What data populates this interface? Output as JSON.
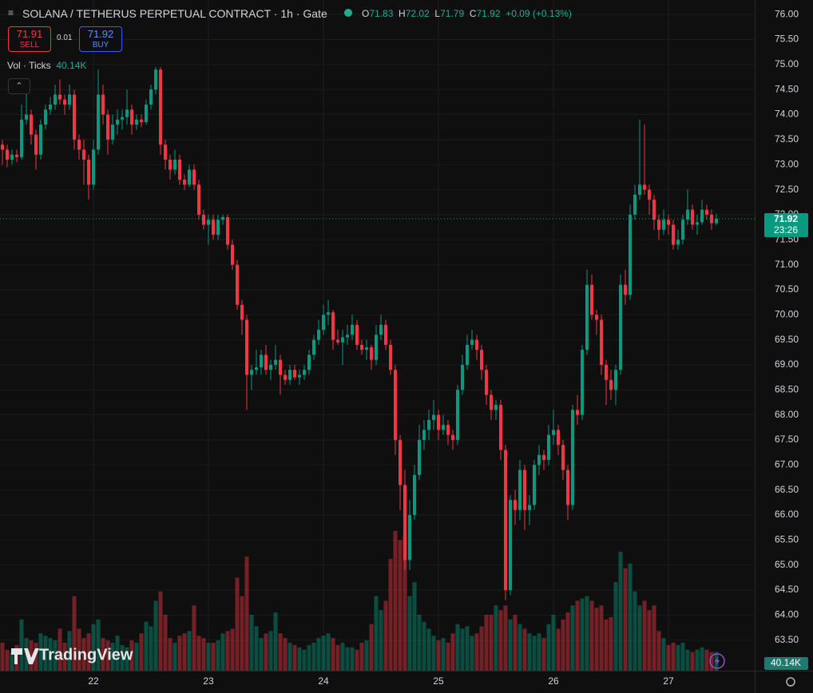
{
  "header": {
    "title": "SOLANA / TETHERUS PERPETUAL CONTRACT · 1h · Gate",
    "ohlc_labels": [
      "O",
      "H",
      "L",
      "C"
    ],
    "change": "+0.09 (+0.13%)",
    "sell": {
      "price": "71.91",
      "label": "SELL"
    },
    "spread": "0.01",
    "buy": {
      "price": "71.92",
      "label": "BUY"
    },
    "countdown": "23:26",
    "logo": "TradingView"
  },
  "chart_data": {
    "type": "candlestick",
    "title": "SOLANA / TETHERUS PERPETUAL CONTRACT · 1h · Gate",
    "up_color": "#089981",
    "down_color": "#f23645",
    "grid": true,
    "ylim": [
      62.89,
      76.29
    ],
    "yticks": [
      {
        "value": 63.5,
        "label": "63.50"
      },
      {
        "value": 64,
        "label": "64.00"
      },
      {
        "value": 64.5,
        "label": "64.50"
      },
      {
        "value": 65,
        "label": "65.00"
      },
      {
        "value": 65.5,
        "label": "65.50"
      },
      {
        "value": 66,
        "label": "66.00"
      },
      {
        "value": 66.5,
        "label": "66.50"
      },
      {
        "value": 67,
        "label": "67.00"
      },
      {
        "value": 67.5,
        "label": "67.50"
      },
      {
        "value": 68,
        "label": "68.00"
      },
      {
        "value": 68.5,
        "label": "68.50"
      },
      {
        "value": 69,
        "label": "69.00"
      },
      {
        "value": 69.5,
        "label": "69.50"
      },
      {
        "value": 70,
        "label": "70.00"
      },
      {
        "value": 70.5,
        "label": "70.50"
      },
      {
        "value": 71,
        "label": "71.00"
      },
      {
        "value": 71.5,
        "label": "71.50"
      },
      {
        "value": 72,
        "label": "72.00"
      },
      {
        "value": 72.5,
        "label": "72.50"
      },
      {
        "value": 73,
        "label": "73.00"
      },
      {
        "value": 73.5,
        "label": "73.50"
      },
      {
        "value": 74,
        "label": "74.00"
      },
      {
        "value": 74.5,
        "label": "74.50"
      },
      {
        "value": 75,
        "label": "75.00"
      },
      {
        "value": 75.5,
        "label": "75.50"
      },
      {
        "value": 76,
        "label": "76.00"
      }
    ],
    "categories": [
      null,
      null,
      null,
      null,
      null,
      null,
      null,
      null,
      null,
      null,
      null,
      null,
      null,
      null,
      null,
      null,
      null,
      null,
      null,
      "22",
      null,
      null,
      null,
      null,
      null,
      null,
      null,
      null,
      null,
      null,
      null,
      null,
      null,
      null,
      null,
      null,
      null,
      null,
      null,
      null,
      null,
      null,
      null,
      "23",
      null,
      null,
      null,
      null,
      null,
      null,
      null,
      null,
      null,
      null,
      null,
      null,
      null,
      null,
      null,
      null,
      null,
      null,
      null,
      null,
      null,
      null,
      null,
      "24",
      null,
      null,
      null,
      null,
      null,
      null,
      null,
      null,
      null,
      null,
      null,
      null,
      null,
      null,
      null,
      null,
      null,
      null,
      null,
      null,
      null,
      null,
      null,
      "25",
      null,
      null,
      null,
      null,
      null,
      null,
      null,
      null,
      null,
      null,
      null,
      null,
      null,
      null,
      null,
      null,
      null,
      null,
      null,
      null,
      null,
      null,
      null,
      "26",
      null,
      null,
      null,
      null,
      null,
      null,
      null,
      null,
      null,
      null,
      null,
      null,
      null,
      null,
      null,
      null,
      null,
      null,
      null,
      null,
      null,
      null,
      null,
      "27",
      null,
      null,
      null,
      null,
      null,
      null,
      null,
      null,
      null,
      null
    ],
    "candles": [
      [
        73.4,
        73.5,
        73.0,
        73.3
      ],
      [
        73.3,
        73.4,
        72.95,
        73.1
      ],
      [
        73.1,
        73.3,
        73.0,
        73.2
      ],
      [
        73.2,
        73.3,
        73.05,
        73.15
      ],
      [
        73.15,
        74.2,
        73.1,
        73.9
      ],
      [
        73.9,
        74.5,
        73.8,
        74.0
      ],
      [
        74.0,
        74.1,
        73.4,
        73.6
      ],
      [
        73.6,
        73.7,
        72.9,
        73.2
      ],
      [
        73.2,
        73.9,
        73.1,
        73.8
      ],
      [
        73.8,
        74.2,
        73.7,
        74.1
      ],
      [
        74.1,
        74.35,
        74.0,
        74.2
      ],
      [
        74.2,
        74.6,
        74.1,
        74.4
      ],
      [
        74.4,
        74.7,
        74.2,
        74.3
      ],
      [
        74.3,
        74.4,
        74.0,
        74.2
      ],
      [
        74.2,
        74.6,
        74.1,
        74.4
      ],
      [
        74.4,
        74.5,
        73.3,
        73.5
      ],
      [
        73.5,
        73.6,
        73.1,
        73.3
      ],
      [
        73.3,
        73.5,
        72.6,
        73.1
      ],
      [
        73.1,
        73.2,
        72.3,
        72.6
      ],
      [
        72.6,
        73.5,
        72.5,
        73.3
      ],
      [
        73.3,
        74.9,
        73.2,
        74.4
      ],
      [
        74.4,
        74.6,
        73.8,
        74.0
      ],
      [
        74.0,
        74.1,
        73.2,
        73.5
      ],
      [
        73.5,
        74.0,
        73.4,
        73.8
      ],
      [
        73.8,
        74.1,
        73.6,
        73.9
      ],
      [
        73.9,
        74.1,
        73.7,
        73.95
      ],
      [
        73.95,
        74.5,
        73.8,
        74.1
      ],
      [
        74.1,
        74.2,
        73.6,
        73.8
      ],
      [
        73.8,
        74.0,
        73.7,
        73.9
      ],
      [
        73.9,
        74.0,
        73.75,
        73.85
      ],
      [
        73.85,
        74.3,
        73.8,
        74.2
      ],
      [
        74.2,
        74.6,
        74.1,
        74.5
      ],
      [
        74.5,
        74.95,
        74.4,
        74.9
      ],
      [
        74.9,
        74.95,
        73.2,
        73.4
      ],
      [
        73.4,
        73.5,
        72.9,
        73.1
      ],
      [
        73.1,
        73.2,
        72.7,
        72.9
      ],
      [
        72.9,
        73.3,
        72.8,
        73.1
      ],
      [
        73.1,
        73.2,
        72.6,
        72.7
      ],
      [
        72.7,
        72.8,
        72.5,
        72.6
      ],
      [
        72.6,
        73.0,
        72.55,
        72.9
      ],
      [
        72.9,
        73.0,
        72.5,
        72.6
      ],
      [
        72.6,
        72.7,
        71.9,
        72.0
      ],
      [
        72.0,
        72.1,
        71.7,
        71.8
      ],
      [
        71.8,
        72.0,
        71.4,
        71.9
      ],
      [
        71.9,
        72.0,
        71.5,
        71.6
      ],
      [
        71.6,
        72.0,
        71.5,
        71.9
      ],
      [
        71.9,
        72.0,
        71.8,
        71.95
      ],
      [
        71.95,
        72.0,
        71.3,
        71.4
      ],
      [
        71.4,
        71.5,
        70.9,
        71.0
      ],
      [
        71.0,
        71.1,
        70.1,
        70.2
      ],
      [
        70.2,
        70.3,
        69.6,
        69.9
      ],
      [
        69.9,
        70.0,
        68.1,
        68.8
      ],
      [
        68.8,
        69.0,
        68.5,
        68.9
      ],
      [
        68.9,
        69.3,
        68.8,
        68.95
      ],
      [
        68.95,
        69.3,
        68.8,
        69.2
      ],
      [
        69.2,
        69.4,
        68.8,
        68.9
      ],
      [
        68.9,
        69.1,
        68.7,
        69.0
      ],
      [
        69.0,
        69.4,
        68.9,
        69.1
      ],
      [
        69.1,
        69.2,
        68.4,
        68.8
      ],
      [
        68.8,
        68.9,
        68.6,
        68.7
      ],
      [
        68.7,
        69.0,
        68.6,
        68.9
      ],
      [
        68.9,
        69.0,
        68.7,
        68.75
      ],
      [
        68.75,
        68.9,
        68.6,
        68.8
      ],
      [
        68.8,
        69.0,
        68.7,
        68.9
      ],
      [
        68.9,
        69.3,
        68.8,
        69.2
      ],
      [
        69.2,
        69.6,
        69.1,
        69.5
      ],
      [
        69.5,
        69.9,
        69.4,
        69.7
      ],
      [
        69.7,
        70.2,
        69.6,
        70.0
      ],
      [
        70.0,
        70.3,
        69.8,
        70.05
      ],
      [
        70.05,
        70.1,
        69.3,
        69.5
      ],
      [
        69.5,
        69.7,
        69.4,
        69.45
      ],
      [
        69.45,
        69.7,
        69.0,
        69.55
      ],
      [
        69.55,
        69.8,
        69.4,
        69.6
      ],
      [
        69.6,
        70.0,
        69.5,
        69.8
      ],
      [
        69.8,
        69.9,
        69.3,
        69.4
      ],
      [
        69.4,
        69.5,
        69.2,
        69.3
      ],
      [
        69.3,
        69.5,
        69.1,
        69.35
      ],
      [
        69.35,
        69.4,
        68.9,
        69.1
      ],
      [
        69.1,
        69.8,
        69.0,
        69.6
      ],
      [
        69.6,
        70.0,
        69.5,
        69.8
      ],
      [
        69.8,
        69.9,
        69.3,
        69.4
      ],
      [
        69.4,
        69.5,
        68.8,
        68.9
      ],
      [
        68.9,
        69.0,
        67.2,
        67.5
      ],
      [
        67.5,
        67.6,
        66.1,
        66.6
      ],
      [
        66.6,
        66.9,
        64.9,
        65.1
      ],
      [
        65.1,
        66.3,
        64.9,
        66.0
      ],
      [
        66.0,
        67.0,
        65.9,
        66.8
      ],
      [
        66.8,
        67.8,
        66.7,
        67.5
      ],
      [
        67.5,
        67.9,
        67.3,
        67.7
      ],
      [
        67.7,
        68.1,
        67.5,
        67.9
      ],
      [
        67.9,
        68.3,
        67.7,
        68.0
      ],
      [
        68.0,
        68.1,
        67.5,
        67.7
      ],
      [
        67.7,
        68.0,
        67.6,
        67.8
      ],
      [
        67.8,
        67.9,
        67.4,
        67.6
      ],
      [
        67.6,
        67.7,
        67.3,
        67.5
      ],
      [
        67.5,
        68.6,
        67.4,
        68.5
      ],
      [
        68.5,
        69.2,
        68.4,
        69.0
      ],
      [
        69.0,
        69.6,
        68.9,
        69.4
      ],
      [
        69.4,
        69.7,
        69.3,
        69.5
      ],
      [
        69.5,
        69.6,
        69.1,
        69.3
      ],
      [
        69.3,
        69.4,
        68.7,
        68.9
      ],
      [
        68.9,
        69.0,
        68.2,
        68.4
      ],
      [
        68.4,
        68.5,
        67.9,
        68.1
      ],
      [
        68.1,
        68.3,
        67.9,
        68.2
      ],
      [
        68.2,
        68.3,
        67.1,
        67.3
      ],
      [
        67.3,
        67.4,
        64.3,
        64.5
      ],
      [
        64.5,
        66.4,
        64.4,
        66.3
      ],
      [
        66.3,
        66.5,
        65.8,
        66.1
      ],
      [
        66.1,
        67.1,
        65.9,
        66.9
      ],
      [
        66.9,
        67.0,
        65.7,
        66.1
      ],
      [
        66.1,
        66.4,
        65.8,
        66.2
      ],
      [
        66.2,
        67.1,
        66.1,
        67.0
      ],
      [
        67.0,
        67.4,
        66.8,
        67.2
      ],
      [
        67.2,
        67.3,
        66.9,
        67.1
      ],
      [
        67.1,
        67.8,
        67.0,
        67.6
      ],
      [
        67.6,
        68.1,
        67.4,
        67.7
      ],
      [
        67.7,
        67.8,
        67.2,
        67.4
      ],
      [
        67.4,
        67.5,
        66.7,
        66.9
      ],
      [
        66.9,
        67.0,
        65.9,
        66.2
      ],
      [
        66.2,
        68.2,
        66.1,
        68.1
      ],
      [
        68.1,
        68.4,
        67.8,
        68.0
      ],
      [
        68.0,
        69.4,
        67.9,
        69.3
      ],
      [
        69.3,
        70.9,
        69.2,
        70.6
      ],
      [
        70.6,
        70.8,
        69.9,
        70.0
      ],
      [
        70.0,
        70.1,
        69.6,
        69.9
      ],
      [
        69.9,
        70.0,
        68.8,
        69.0
      ],
      [
        69.0,
        69.1,
        68.2,
        68.7
      ],
      [
        68.7,
        68.9,
        68.3,
        68.5
      ],
      [
        68.5,
        69.0,
        68.2,
        68.9
      ],
      [
        68.9,
        70.8,
        68.8,
        70.6
      ],
      [
        70.6,
        70.9,
        70.2,
        70.4
      ],
      [
        70.4,
        72.2,
        70.3,
        72.0
      ],
      [
        72.0,
        72.6,
        71.9,
        72.4
      ],
      [
        72.4,
        73.9,
        72.3,
        72.6
      ],
      [
        72.6,
        73.8,
        72.4,
        72.5
      ],
      [
        72.5,
        72.6,
        72.0,
        72.3
      ],
      [
        72.3,
        72.4,
        71.7,
        71.9
      ],
      [
        71.9,
        72.0,
        71.5,
        71.7
      ],
      [
        71.7,
        72.1,
        71.6,
        71.9
      ],
      [
        71.9,
        72.0,
        71.6,
        71.8
      ],
      [
        71.8,
        71.9,
        71.3,
        71.4
      ],
      [
        71.4,
        71.7,
        71.3,
        71.5
      ],
      [
        71.5,
        72.0,
        71.4,
        71.9
      ],
      [
        71.9,
        72.5,
        71.8,
        72.1
      ],
      [
        72.1,
        72.2,
        71.7,
        71.8
      ],
      [
        71.8,
        72.0,
        71.6,
        71.85
      ],
      [
        71.85,
        72.3,
        71.8,
        72.1
      ],
      [
        72.1,
        72.2,
        71.9,
        72.0
      ],
      [
        72.0,
        72.1,
        71.7,
        71.83
      ],
      [
        71.83,
        72.02,
        71.79,
        71.92
      ]
    ],
    "volume": {
      "name": "Vol · Ticks",
      "last_label": "40.14K",
      "values": [
        60000,
        45000,
        40000,
        55000,
        110000,
        70000,
        65000,
        60000,
        80000,
        75000,
        70000,
        65000,
        90000,
        60000,
        85000,
        160000,
        90000,
        70000,
        80000,
        100000,
        110000,
        70000,
        65000,
        60000,
        75000,
        55000,
        50000,
        65000,
        60000,
        80000,
        105000,
        95000,
        150000,
        170000,
        120000,
        70000,
        60000,
        75000,
        80000,
        85000,
        140000,
        75000,
        70000,
        60000,
        60000,
        65000,
        80000,
        85000,
        90000,
        200000,
        160000,
        245000,
        120000,
        95000,
        70000,
        80000,
        85000,
        125000,
        80000,
        70000,
        60000,
        55000,
        50000,
        45000,
        55000,
        60000,
        70000,
        75000,
        80000,
        70000,
        55000,
        60000,
        50000,
        50000,
        45000,
        60000,
        65000,
        100000,
        160000,
        130000,
        150000,
        240000,
        300000,
        280000,
        290000,
        160000,
        190000,
        120000,
        105000,
        90000,
        75000,
        65000,
        70000,
        60000,
        80000,
        100000,
        90000,
        95000,
        75000,
        80000,
        95000,
        120000,
        120000,
        140000,
        130000,
        140000,
        110000,
        120000,
        100000,
        90000,
        80000,
        75000,
        80000,
        70000,
        100000,
        120000,
        90000,
        110000,
        125000,
        140000,
        150000,
        155000,
        160000,
        150000,
        135000,
        140000,
        110000,
        115000,
        190000,
        255000,
        220000,
        230000,
        170000,
        140000,
        150000,
        130000,
        140000,
        85000,
        70000,
        55000,
        60000,
        55000,
        60000,
        45000,
        40000,
        45000,
        50000,
        45000,
        40000,
        40140
      ]
    }
  }
}
